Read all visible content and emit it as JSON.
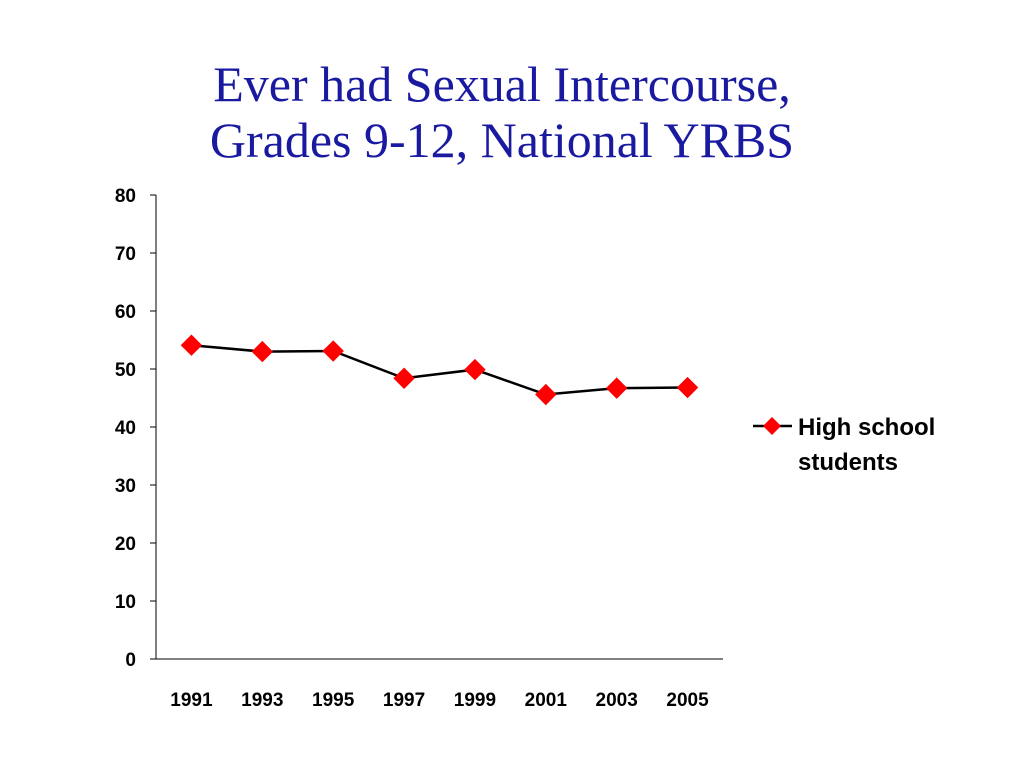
{
  "slide": {
    "title_line1": "Ever had Sexual Intercourse,",
    "title_line2": "Grades 9-12, National YRBS"
  },
  "chart_data": {
    "type": "line",
    "title": "Ever had Sexual Intercourse, Grades 9-12, National YRBS",
    "xlabel": "",
    "ylabel": "",
    "categories": [
      "1991",
      "1993",
      "1995",
      "1997",
      "1999",
      "2001",
      "2003",
      "2005"
    ],
    "series": [
      {
        "name": "High school students",
        "name_lines": [
          "High school",
          "students"
        ],
        "values": [
          54.1,
          53.0,
          53.1,
          48.4,
          49.9,
          45.6,
          46.7,
          46.8
        ],
        "line_color": "#000000",
        "marker": "diamond",
        "marker_color": "#ff0000"
      }
    ],
    "ylim": [
      0,
      80
    ],
    "yticks": [
      0,
      10,
      20,
      30,
      40,
      50,
      60,
      70,
      80
    ],
    "grid": false,
    "legend_position": "right"
  }
}
